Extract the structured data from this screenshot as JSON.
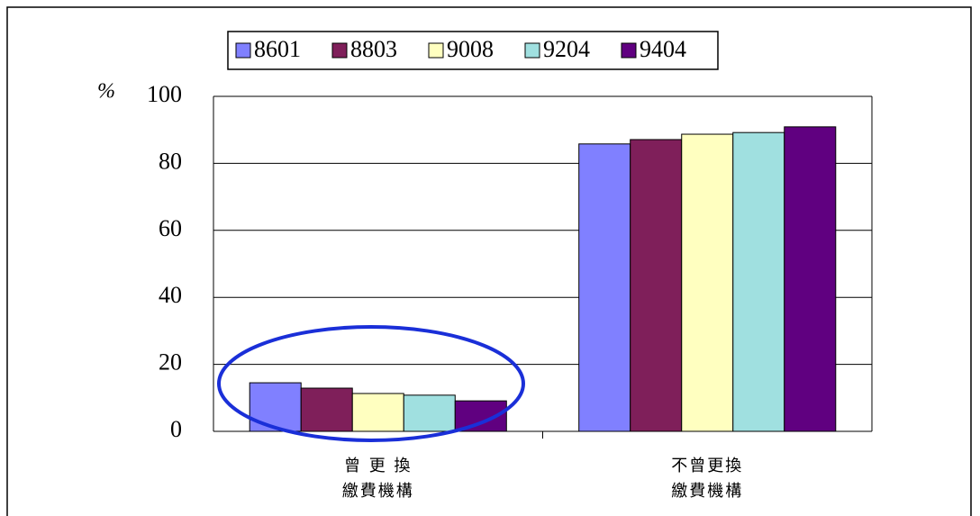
{
  "chart_data": {
    "type": "bar",
    "y_label": "%",
    "categories": [
      [
        "曾 更 換",
        "繳費機構"
      ],
      [
        "不曾更換",
        "繳費機構"
      ]
    ],
    "series": [
      {
        "name": "8601",
        "color": "#8080ff",
        "values": [
          14.5,
          85.8
        ]
      },
      {
        "name": "8803",
        "color": "#7f1f5a",
        "values": [
          12.9,
          87.1
        ]
      },
      {
        "name": "9008",
        "color": "#ffffc0",
        "values": [
          11.3,
          88.7
        ]
      },
      {
        "name": "9204",
        "color": "#a0e0e0",
        "values": [
          10.8,
          89.2
        ]
      },
      {
        "name": "9404",
        "color": "#600080",
        "values": [
          9.1,
          90.9
        ]
      }
    ],
    "ylim": [
      0,
      100
    ],
    "yticks": [
      0,
      20,
      40,
      60,
      80,
      100
    ],
    "grid": true
  }
}
